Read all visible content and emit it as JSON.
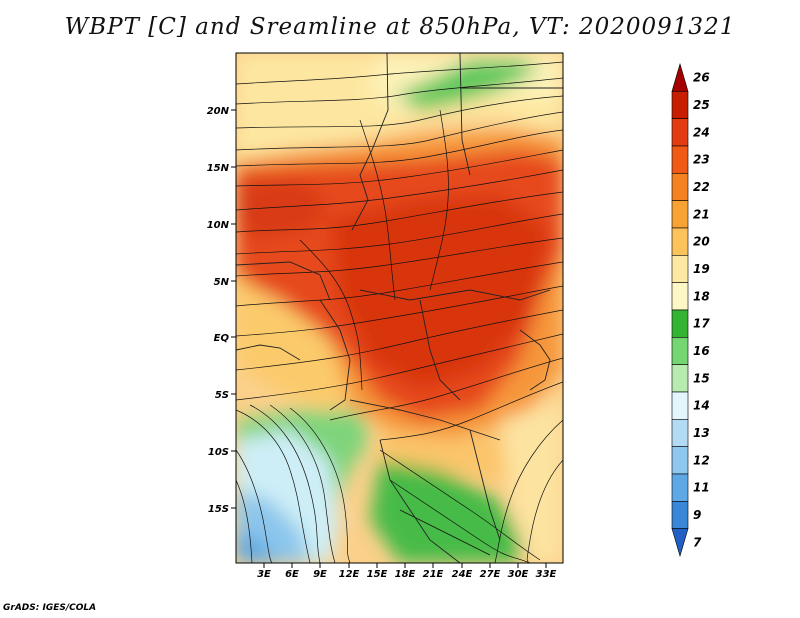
{
  "title": "WBPT [C] and Sreamline at 850hPa, VT: 2020091321",
  "credit": "GrADS: IGES/COLA",
  "map": {
    "lat_labels": [
      "20N",
      "15N",
      "10N",
      "5N",
      "EQ",
      "5S",
      "10S",
      "15S"
    ],
    "lon_labels": [
      "3E",
      "6E",
      "9E",
      "12E",
      "15E",
      "18E",
      "21E",
      "24E",
      "27E",
      "30E",
      "33E"
    ],
    "field": "Wet-bulb potential temperature (C)",
    "overlay": "Streamlines",
    "level": "850hPa"
  },
  "colorbar": {
    "labels": [
      "26",
      "25",
      "24",
      "23",
      "22",
      "21",
      "20",
      "19",
      "18",
      "17",
      "16",
      "15",
      "14",
      "13",
      "12",
      "11",
      "9",
      "7"
    ],
    "colors": [
      "#a50000",
      "#c81e00",
      "#e23c12",
      "#f05a16",
      "#f58220",
      "#f8a233",
      "#fbc35a",
      "#fde9a2",
      "#fdf7c6",
      "#33b533",
      "#74d670",
      "#b8ebb0",
      "#e2f6fb",
      "#b3dcf4",
      "#8ec8ee",
      "#5ea8e6",
      "#3a86d8",
      "#1f5fc6"
    ]
  }
}
